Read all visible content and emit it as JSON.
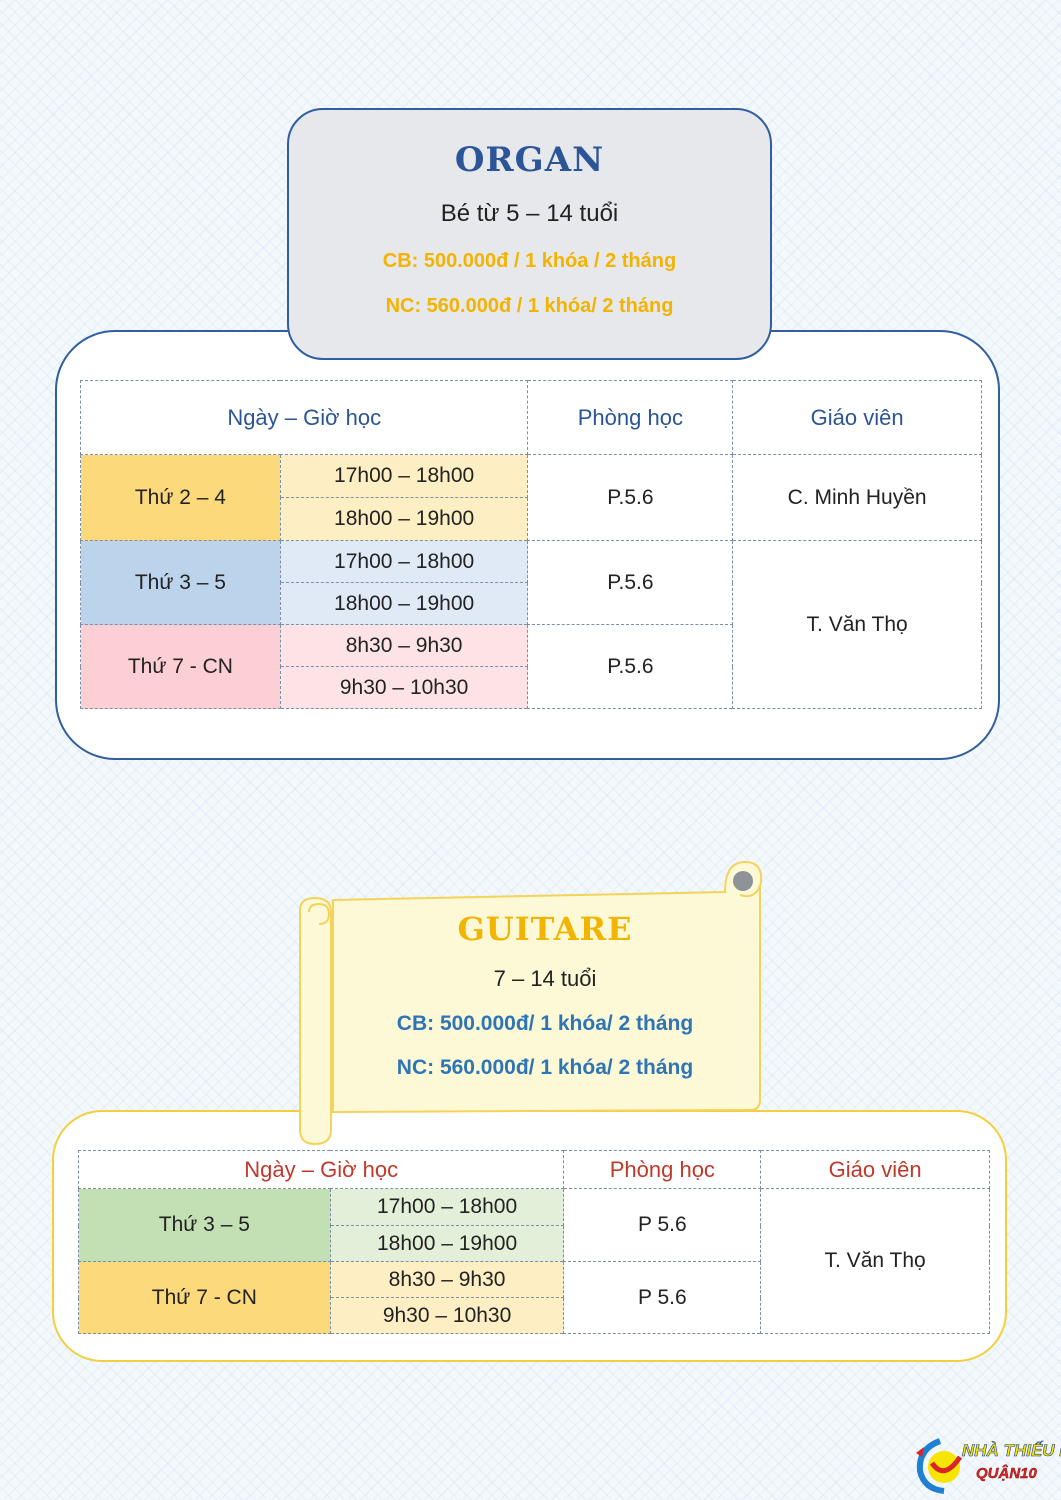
{
  "organ": {
    "title": "ORGAN",
    "age": "Bé từ 5 – 14 tuổi",
    "price_cb": "CB: 500.000đ / 1 khóa / 2 tháng",
    "price_nc": "NC: 560.000đ / 1 khóa/ 2 tháng",
    "headers": [
      "Ngày – Giờ học",
      "Phòng học",
      "Giáo viên"
    ],
    "rows": [
      {
        "day": "Thứ 2 – 4",
        "times": [
          "17h00 – 18h00",
          "18h00 – 19h00"
        ],
        "room": "P.5.6"
      },
      {
        "day": "Thứ 3 – 5",
        "times": [
          "17h00 – 18h00",
          "18h00 – 19h00"
        ],
        "room": "P.5.6"
      },
      {
        "day": "Thứ 7 - CN",
        "times": [
          "8h30 – 9h30",
          "9h30 – 10h30"
        ],
        "room": "P.5.6"
      }
    ],
    "teachers": [
      "C. Minh Huyền",
      "T. Văn Thọ"
    ]
  },
  "guitare": {
    "title": "GUITARE",
    "age": "7 – 14 tuổi",
    "price_cb": "CB: 500.000đ/ 1 khóa/ 2 tháng",
    "price_nc": "NC: 560.000đ/ 1 khóa/ 2 tháng",
    "headers": [
      "Ngày – Giờ học",
      "Phòng học",
      "Giáo viên"
    ],
    "rows": [
      {
        "day": "Thứ 3 – 5",
        "times": [
          "17h00 – 18h00",
          "18h00 – 19h00"
        ],
        "room": "P 5.6"
      },
      {
        "day": "Thứ 7 - CN",
        "times": [
          "8h30 – 9h30",
          "9h30 – 10h30"
        ],
        "room": "P 5.6"
      }
    ],
    "teacher": "T. Văn Thọ"
  },
  "logo": {
    "name": "NHÀ THIẾU NHI",
    "sub": "QUẬN10"
  },
  "colors": {
    "organ_accent": "#2b5597",
    "guitare_accent": "#f3b400",
    "price_gold": "#f2b400",
    "price_blue": "#2e75b6",
    "header_red": "#c0392b"
  }
}
